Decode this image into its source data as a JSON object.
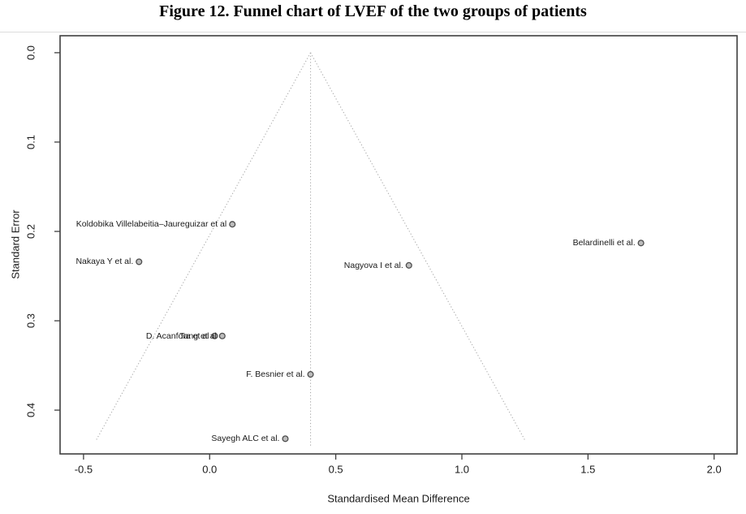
{
  "figure": {
    "title": "Figure 12. Funnel chart of LVEF of the two groups of patients"
  },
  "chart_data": {
    "type": "scatter",
    "subtype": "funnel-plot",
    "title": "Figure 12. Funnel chart of LVEF of the two groups of patients",
    "xlabel": "Standardised Mean Difference",
    "ylabel": "Standard Error",
    "x_ticks": [
      "-0.5",
      "0.0",
      "0.5",
      "1.0",
      "1.5",
      "2.0"
    ],
    "y_ticks": [
      "0.0",
      "0.1",
      "0.2",
      "0.3",
      "0.4"
    ],
    "xlim": [
      -0.593,
      2.091
    ],
    "ylim_se": [
      -0.019,
      0.449
    ],
    "y_axis_orientation": "inverted (SE 0 at top)",
    "grid": false,
    "legend": "none",
    "funnel": {
      "center_smd": 0.4,
      "z": 1.96,
      "se_line_end": 0.433,
      "center_line_se_end": 0.441
    },
    "points": [
      {
        "label": "Koldobika Villelabeitia–Jaureguizar et al",
        "smd": 0.09,
        "se": 0.192
      },
      {
        "label": "Belardinelli et al.",
        "smd": 1.71,
        "se": 0.213
      },
      {
        "label": "Nakaya Y et al.",
        "smd": -0.28,
        "se": 0.234
      },
      {
        "label": "Nagyova I et al.",
        "smd": 0.79,
        "se": 0.238
      },
      {
        "label": "D. Acanfora et al",
        "smd": 0.02,
        "se": 0.317
      },
      {
        "label": "Tang et al",
        "smd": 0.05,
        "se": 0.317
      },
      {
        "label": "F. Besnier et al.",
        "smd": 0.4,
        "se": 0.36
      },
      {
        "label": "Sayegh ALC et al.",
        "smd": 0.3,
        "se": 0.432
      }
    ],
    "colors": {
      "point_fill": "#bcbcbc",
      "point_stroke": "#4d4d4d",
      "funnel_line": "#aaaaaa",
      "axis": "#3f3f3f",
      "text": "#1a1a1a"
    }
  }
}
